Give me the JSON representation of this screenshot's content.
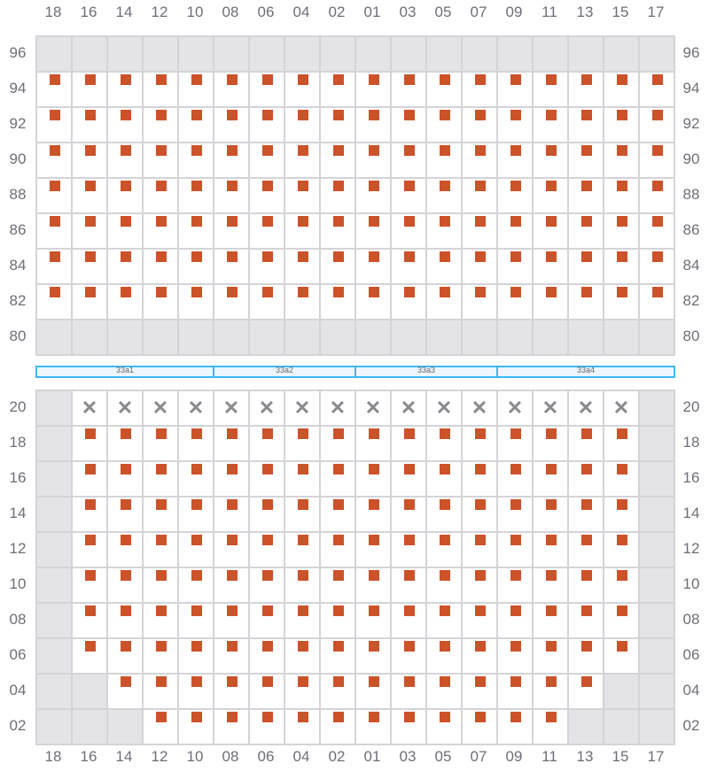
{
  "columns": [
    "18",
    "16",
    "14",
    "12",
    "10",
    "08",
    "06",
    "04",
    "02",
    "01",
    "03",
    "05",
    "07",
    "09",
    "11",
    "13",
    "15",
    "17"
  ],
  "colors": {
    "seat": "#cc5229",
    "blocked": "#8a8a8e",
    "unavailable": "#e4e4e7",
    "zone_border": "#3db8f0"
  },
  "icons": {
    "blocked": "close-x-icon",
    "seat": "seat-square-icon"
  },
  "legend_states": {
    "g": "unavailable",
    "s": "seat",
    "x": "blocked"
  },
  "top_section": {
    "rows": [
      {
        "label": "96",
        "cells": "gggggggggggggggggg"
      },
      {
        "label": "94",
        "cells": "ssssssssssssssssss"
      },
      {
        "label": "92",
        "cells": "ssssssssssssssssss"
      },
      {
        "label": "90",
        "cells": "ssssssssssssssssss"
      },
      {
        "label": "88",
        "cells": "ssssssssssssssssss"
      },
      {
        "label": "86",
        "cells": "ssssssssssssssssss"
      },
      {
        "label": "84",
        "cells": "ssssssssssssssssss"
      },
      {
        "label": "82",
        "cells": "ssssssssssssssssss"
      },
      {
        "label": "80",
        "cells": "gggggggggggggggggg"
      }
    ]
  },
  "zones": [
    {
      "label": "33a1",
      "span": 5
    },
    {
      "label": "33a2",
      "span": 4
    },
    {
      "label": "33a3",
      "span": 4
    },
    {
      "label": "33a4",
      "span": 5
    }
  ],
  "bottom_section": {
    "rows": [
      {
        "label": "20",
        "cells": "gxxxxxxxxxxxxxxxxg"
      },
      {
        "label": "18",
        "cells": "gssssssssssssssssg"
      },
      {
        "label": "16",
        "cells": "gssssssssssssssssg"
      },
      {
        "label": "14",
        "cells": "gssssssssssssssssg"
      },
      {
        "label": "12",
        "cells": "gssssssssssssssssg"
      },
      {
        "label": "10",
        "cells": "gssssssssssssssssg"
      },
      {
        "label": "08",
        "cells": "gssssssssssssssssg"
      },
      {
        "label": "06",
        "cells": "gssssssssssssssssg"
      },
      {
        "label": "04",
        "cells": "ggssssssssssssssgg"
      },
      {
        "label": "02",
        "cells": "gggssssssssssssggg"
      }
    ]
  }
}
